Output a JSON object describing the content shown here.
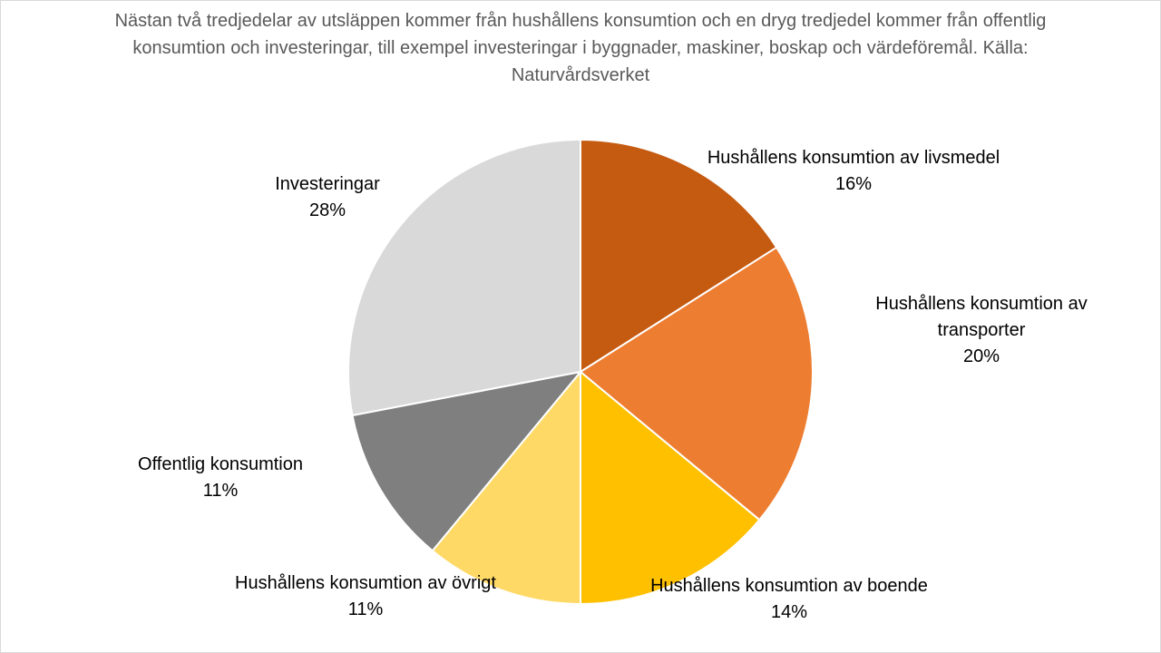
{
  "chart_data": {
    "type": "pie",
    "title": "Nästan två tredjedelar av utsläppen kommer från hushållens konsumtion och en dryg tredjedel kommer från offentlig konsumtion och investeringar, till exempel investeringar i byggnader, maskiner, boskap och värdeföremål. Källa: Naturvårdsverket",
    "slices": [
      {
        "label": "Hushållens konsumtion av livsmedel",
        "value": 16,
        "value_label": "16%",
        "color": "#C55A11"
      },
      {
        "label": "Hushållens konsumtion av transporter",
        "value": 20,
        "value_label": "20%",
        "color": "#ED7D31"
      },
      {
        "label": "Hushållens konsumtion av boende",
        "value": 14,
        "value_label": "14%",
        "color": "#FFC000"
      },
      {
        "label": "Hushållens konsumtion av övrigt",
        "value": 11,
        "value_label": "11%",
        "color": "#FFD966"
      },
      {
        "label": "Offentlig konsumtion",
        "value": 11,
        "value_label": "11%",
        "color": "#7F7F7F"
      },
      {
        "label": "Investeringar",
        "value": 28,
        "value_label": "28%",
        "color": "#D9D9D9"
      }
    ]
  }
}
